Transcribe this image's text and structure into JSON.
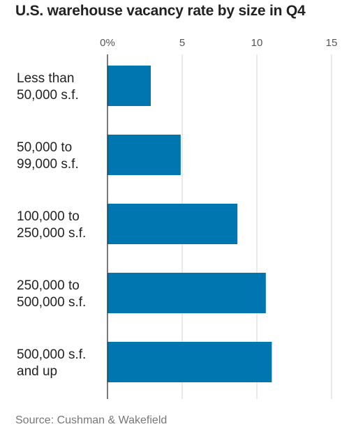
{
  "chart_data": {
    "type": "bar",
    "orientation": "horizontal",
    "title": "U.S. warehouse vacancy rate by size in Q4",
    "categories": [
      [
        "Less than",
        "50,000 s.f."
      ],
      [
        "50,000 to",
        "99,000 s.f."
      ],
      [
        "100,000 to",
        "250,000 s.f."
      ],
      [
        "250,000 to",
        "500,000 s.f."
      ],
      [
        "500,000 s.f.",
        "and up"
      ]
    ],
    "values": [
      2.9,
      4.9,
      8.7,
      10.6,
      11.0
    ],
    "xlim": [
      0,
      15
    ],
    "ticks": [
      0,
      5,
      10,
      15
    ],
    "tick_labels": [
      "0%",
      "5",
      "10",
      "15"
    ],
    "grid": true,
    "bar_color": "#0076B0",
    "source": "Source: Cushman & Wakefield"
  }
}
